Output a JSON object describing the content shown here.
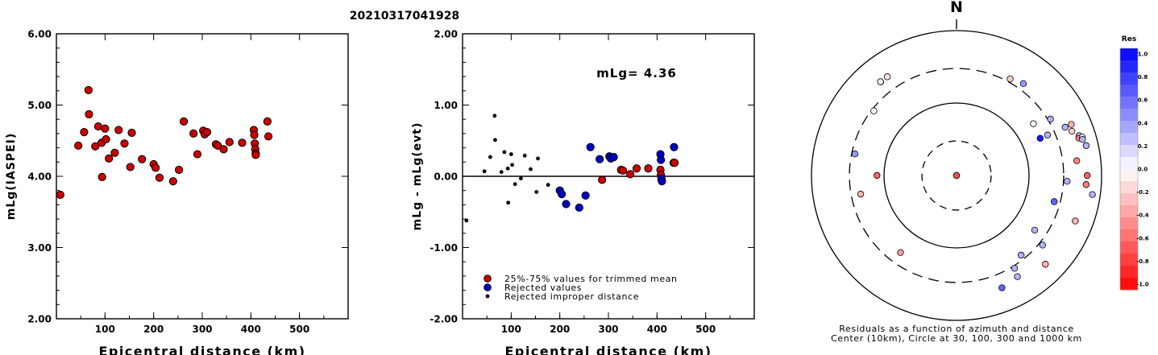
{
  "title": "20210317041928",
  "chart_data": [
    {
      "type": "scatter",
      "xlabel": "Epicentral distance (km)",
      "ylabel": "mLg(IASPEI)",
      "xlim": [
        0,
        600
      ],
      "ylim": [
        2.0,
        6.0
      ],
      "xticks": [
        "100",
        "200",
        "300",
        "400",
        "500"
      ],
      "yticks": [
        "2.00",
        "3.00",
        "4.00",
        "5.00",
        "6.00"
      ],
      "marker_color": "#cc0000",
      "points": [
        [
          8,
          3.74
        ],
        [
          45,
          4.43
        ],
        [
          57,
          4.62
        ],
        [
          66,
          5.21
        ],
        [
          67,
          4.87
        ],
        [
          80,
          4.42
        ],
        [
          86,
          4.7
        ],
        [
          93,
          4.47
        ],
        [
          94,
          3.99
        ],
        [
          100,
          4.67
        ],
        [
          102,
          4.52
        ],
        [
          108,
          4.25
        ],
        [
          120,
          4.33
        ],
        [
          128,
          4.65
        ],
        [
          140,
          4.46
        ],
        [
          152,
          4.13
        ],
        [
          155,
          4.61
        ],
        [
          176,
          4.24
        ],
        [
          200,
          4.17
        ],
        [
          204,
          4.12
        ],
        [
          212,
          3.98
        ],
        [
          240,
          3.93
        ],
        [
          252,
          4.09
        ],
        [
          262,
          4.77
        ],
        [
          282,
          4.6
        ],
        [
          290,
          4.31
        ],
        [
          302,
          4.64
        ],
        [
          305,
          4.59
        ],
        [
          310,
          4.62
        ],
        [
          328,
          4.45
        ],
        [
          332,
          4.43
        ],
        [
          344,
          4.38
        ],
        [
          356,
          4.48
        ],
        [
          382,
          4.47
        ],
        [
          406,
          4.65
        ],
        [
          407,
          4.58
        ],
        [
          408,
          4.46
        ],
        [
          409,
          4.38
        ],
        [
          410,
          4.32
        ],
        [
          410,
          4.3
        ],
        [
          434,
          4.77
        ],
        [
          436,
          4.56
        ]
      ]
    },
    {
      "type": "scatter",
      "xlabel": "Epicentral distance (km)",
      "ylabel": "mLg - mLg(evt)",
      "xlim": [
        0,
        600
      ],
      "ylim": [
        -2.0,
        2.0
      ],
      "xticks": [
        "100",
        "200",
        "300",
        "400",
        "500"
      ],
      "yticks": [
        "-2.00",
        "-1.00",
        "0.00",
        "1.00",
        "2.00"
      ],
      "annotation": "mLg= 4.36",
      "zero_line": true,
      "legend": {
        "placement": "bottom-left",
        "entries": [
          {
            "label": "25%-75% values for trimmed mean",
            "color": "#cc0000",
            "marker": "circle"
          },
          {
            "label": "Rejected values",
            "color": "#0000cc",
            "marker": "circle"
          },
          {
            "label": "Rejected improper distance",
            "color": "#000000",
            "marker": "dot"
          }
        ]
      },
      "series": [
        {
          "name": "25%-75% values for trimmed mean",
          "color": "#cc0000",
          "points": [
            [
              287,
              -0.05
            ],
            [
              326,
              0.09
            ],
            [
              330,
              0.08
            ],
            [
              345,
              0.03
            ],
            [
              358,
              0.11
            ],
            [
              382,
              0.11
            ],
            [
              407,
              0.09
            ],
            [
              408,
              0.02
            ],
            [
              409,
              -0.04
            ],
            [
              434,
              0.19
            ],
            [
              436,
              0.19
            ]
          ]
        },
        {
          "name": "Rejected values",
          "color": "#0000cc",
          "points": [
            [
              200,
              -0.2
            ],
            [
              204,
              -0.25
            ],
            [
              213,
              -0.39
            ],
            [
              240,
              -0.44
            ],
            [
              253,
              -0.27
            ],
            [
              263,
              0.41
            ],
            [
              282,
              0.24
            ],
            [
              302,
              0.28
            ],
            [
              305,
              0.25
            ],
            [
              311,
              0.27
            ],
            [
              407,
              0.31
            ],
            [
              408,
              0.23
            ],
            [
              409,
              -0.03
            ],
            [
              410,
              -0.07
            ],
            [
              435,
              0.41
            ]
          ]
        },
        {
          "name": "Rejected improper distance",
          "color": "#000000",
          "points": [
            [
              8,
              -0.62
            ],
            [
              45,
              0.07
            ],
            [
              57,
              0.27
            ],
            [
              66,
              0.85
            ],
            [
              67,
              0.51
            ],
            [
              80,
              0.06
            ],
            [
              86,
              0.34
            ],
            [
              93,
              0.11
            ],
            [
              94,
              -0.37
            ],
            [
              100,
              0.31
            ],
            [
              102,
              0.16
            ],
            [
              108,
              -0.11
            ],
            [
              120,
              -0.03
            ],
            [
              128,
              0.29
            ],
            [
              140,
              0.1
            ],
            [
              152,
              -0.22
            ],
            [
              155,
              0.25
            ],
            [
              176,
              -0.12
            ]
          ]
        }
      ]
    },
    {
      "type": "scatter",
      "subtype": "polar",
      "north_label": "N",
      "caption_line1": "Residuals as a function of azimuth and distance",
      "caption_line2": "Center (10km), Circle at 30, 100, 300 and 1000 km",
      "rings_km": [
        30,
        100,
        300,
        1000
      ],
      "dashed_rings_km": [
        30,
        300
      ],
      "solid_rings_km": [
        100,
        1000
      ],
      "colorbar": {
        "title": "Res",
        "min": -1.0,
        "max": 1.0,
        "low_color": "#ff0000",
        "mid_color": "#ffffff",
        "high_color": "#0000ff",
        "tick_labels": [
          "1.0",
          "0.8",
          "0.6",
          "0.4",
          "0.2",
          "0.0",
          "-0.2",
          "-0.4",
          "-0.6",
          "-0.8",
          "-1.0"
        ]
      },
      "points": [
        {
          "azimuth_deg": 180,
          "distance_km": 10,
          "residual": 0.0
        },
        {
          "azimuth_deg": 252,
          "distance_km": 8,
          "residual": -0.7
        },
        {
          "azimuth_deg": 270,
          "distance_km": 125,
          "residual": -0.6
        },
        {
          "azimuth_deg": 259,
          "distance_km": 222,
          "residual": -0.3
        },
        {
          "azimuth_deg": 282,
          "distance_km": 270,
          "residual": 0.4
        },
        {
          "azimuth_deg": 308,
          "distance_km": 280,
          "residual": 0.0
        },
        {
          "azimuth_deg": 321,
          "distance_km": 460,
          "residual": -0.05
        },
        {
          "azimuth_deg": 321,
          "distance_km": 463,
          "residual": 0.05
        },
        {
          "azimuth_deg": 325,
          "distance_km": 461,
          "residual": -0.1
        },
        {
          "azimuth_deg": 216,
          "distance_km": 206,
          "residual": -0.4
        },
        {
          "azimuth_deg": 29,
          "distance_km": 335,
          "residual": -0.2
        },
        {
          "azimuth_deg": 36,
          "distance_km": 370,
          "residual": 0.4
        },
        {
          "azimuth_deg": 56,
          "distance_km": 190,
          "residual": 0.05
        },
        {
          "azimuth_deg": 66,
          "distance_km": 236,
          "residual": 0.3
        },
        {
          "azimuth_deg": 66,
          "distance_km": 183,
          "residual": 0.9
        },
        {
          "azimuth_deg": 59,
          "distance_km": 324,
          "residual": 0.3
        },
        {
          "azimuth_deg": 66,
          "distance_km": 436,
          "residual": 0.3
        },
        {
          "azimuth_deg": 66,
          "distance_km": 540,
          "residual": -0.3
        },
        {
          "azimuth_deg": 69,
          "distance_km": 506,
          "residual": -0.2
        },
        {
          "azimuth_deg": 72,
          "distance_km": 596,
          "residual": 0.2
        },
        {
          "azimuth_deg": 73,
          "distance_km": 581,
          "residual": -0.5
        },
        {
          "azimuth_deg": 73,
          "distance_km": 650,
          "residual": 0.1
        },
        {
          "azimuth_deg": 74,
          "distance_km": 641,
          "residual": 0.3
        },
        {
          "azimuth_deg": 77,
          "distance_km": 684,
          "residual": 0.3
        },
        {
          "azimuth_deg": 83,
          "distance_km": 468,
          "residual": -0.5
        },
        {
          "azimuth_deg": 90,
          "distance_km": 634,
          "residual": -0.6
        },
        {
          "azimuth_deg": 93,
          "distance_km": 336,
          "residual": 0.3
        },
        {
          "azimuth_deg": 94,
          "distance_km": 618,
          "residual": -0.5
        },
        {
          "azimuth_deg": 98,
          "distance_km": 779,
          "residual": 0.3
        },
        {
          "azimuth_deg": 105,
          "distance_km": 248,
          "residual": 0.6
        },
        {
          "azimuth_deg": 111,
          "distance_km": 567,
          "residual": -0.3
        },
        {
          "azimuth_deg": 125,
          "distance_km": 207,
          "residual": 0.3
        },
        {
          "azimuth_deg": 129,
          "distance_km": 336,
          "residual": 0.3
        },
        {
          "azimuth_deg": 135,
          "distance_km": 540,
          "residual": -0.3
        },
        {
          "azimuth_deg": 141,
          "distance_km": 260,
          "residual": 0.3
        },
        {
          "azimuth_deg": 148,
          "distance_km": 324,
          "residual": 0.3
        },
        {
          "azimuth_deg": 149,
          "distance_km": 426,
          "residual": 0.3
        },
        {
          "azimuth_deg": 158,
          "distance_km": 470,
          "residual": 0.6
        }
      ]
    }
  ]
}
